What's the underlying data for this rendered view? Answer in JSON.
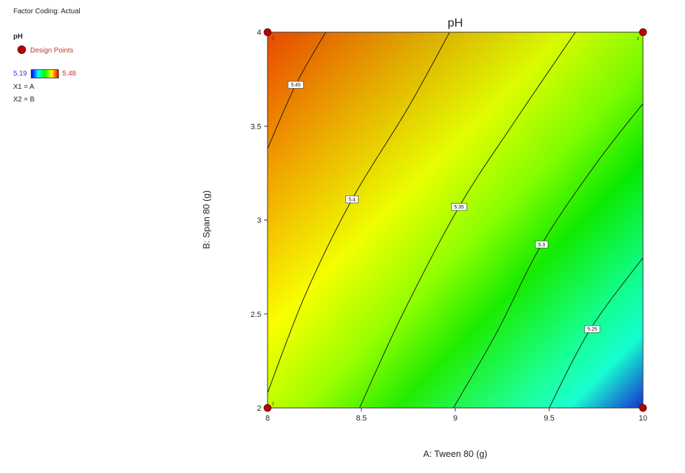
{
  "legend": {
    "factor_coding": "Factor Coding: Actual",
    "response": "pH",
    "design_points": "Design Points",
    "scale_min": "5.19",
    "scale_max": "5.48",
    "x1": "X1 = A",
    "x2": "X2 = B"
  },
  "colors": {
    "low": "#0000ff",
    "mid_low": "#00ffff",
    "mid": "#00ff00",
    "mid_high": "#ffff00",
    "high": "#ff0000",
    "design_point": "#c00000"
  },
  "chart_data": {
    "type": "contour",
    "title": "pH",
    "xlabel": "A: Tween 80 (g)",
    "ylabel": "B: Span 80 (g)",
    "xlim": [
      8,
      10
    ],
    "ylim": [
      2,
      4
    ],
    "xticks": [
      "8",
      "8.5",
      "9",
      "9.5",
      "10"
    ],
    "yticks": [
      "2",
      "2.5",
      "3",
      "3.5",
      "4"
    ],
    "value_range": [
      5.19,
      5.48
    ],
    "corner_values": {
      "x8_y2": 5.41,
      "x10_y2": 5.19,
      "x8_y4": 5.48,
      "x10_y4": 5.33
    },
    "contours": [
      {
        "level": "5.45",
        "points": [
          [
            8,
            3.38
          ],
          [
            8.15,
            3.72
          ],
          [
            8.31,
            4
          ]
        ]
      },
      {
        "level": "5.4",
        "points": [
          [
            8,
            2.08
          ],
          [
            8.2,
            2.6
          ],
          [
            8.45,
            3.11
          ],
          [
            8.75,
            3.6
          ],
          [
            8.97,
            4
          ]
        ]
      },
      {
        "level": "5.35",
        "points": [
          [
            8.49,
            2
          ],
          [
            8.72,
            2.5
          ],
          [
            9.02,
            3.07
          ],
          [
            9.3,
            3.5
          ],
          [
            9.64,
            4
          ]
        ]
      },
      {
        "level": "5.3",
        "points": [
          [
            8.99,
            2
          ],
          [
            9.22,
            2.4
          ],
          [
            9.46,
            2.87
          ],
          [
            9.75,
            3.3
          ],
          [
            10,
            3.62
          ]
        ]
      },
      {
        "level": "5.25",
        "points": [
          [
            9.5,
            2
          ],
          [
            9.72,
            2.42
          ],
          [
            10,
            2.8
          ]
        ]
      }
    ],
    "contour_label_positions": [
      [
        8.15,
        3.72
      ],
      [
        8.45,
        3.11
      ],
      [
        9.02,
        3.07
      ],
      [
        9.46,
        2.87
      ],
      [
        9.73,
        2.42
      ]
    ],
    "design_points": [
      {
        "x": 8,
        "y": 2,
        "label": "3"
      },
      {
        "x": 10,
        "y": 2,
        "label": "3"
      },
      {
        "x": 8,
        "y": 4,
        "label": "3"
      },
      {
        "x": 10,
        "y": 4,
        "label": "3"
      }
    ]
  }
}
